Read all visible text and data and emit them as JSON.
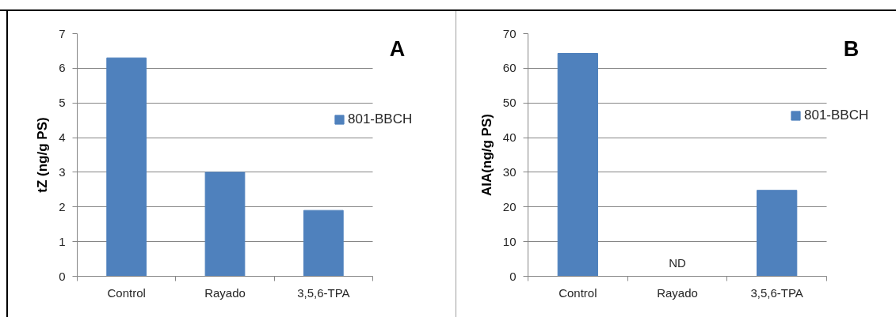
{
  "chart_data": [
    {
      "type": "bar",
      "ylabel": "tZ (ng/g PS)",
      "categories": [
        "Control",
        "Rayado",
        "3,5,6-TPA"
      ],
      "series": [
        {
          "name": "801-BBCH",
          "color": "#4f81bd",
          "values": [
            6.3,
            3.0,
            1.9
          ]
        }
      ],
      "ylim": [
        0,
        7
      ],
      "yticks": [
        0,
        1,
        2,
        3,
        4,
        5,
        6,
        7
      ],
      "grid": "y",
      "legend": "right",
      "annotations": [
        "A"
      ]
    },
    {
      "type": "bar",
      "ylabel": "AIA(ng/g PS)",
      "categories": [
        "Control",
        "Rayado",
        "3,5,6-TPA"
      ],
      "series": [
        {
          "name": "801-BBCH",
          "color": "#4f81bd",
          "values": [
            64.3,
            null,
            24.8
          ]
        }
      ],
      "ylim": [
        0,
        70
      ],
      "yticks": [
        0,
        10,
        20,
        30,
        40,
        50,
        60,
        70
      ],
      "grid": "y",
      "legend": "right",
      "annotations": [
        "B",
        "ND"
      ]
    }
  ]
}
